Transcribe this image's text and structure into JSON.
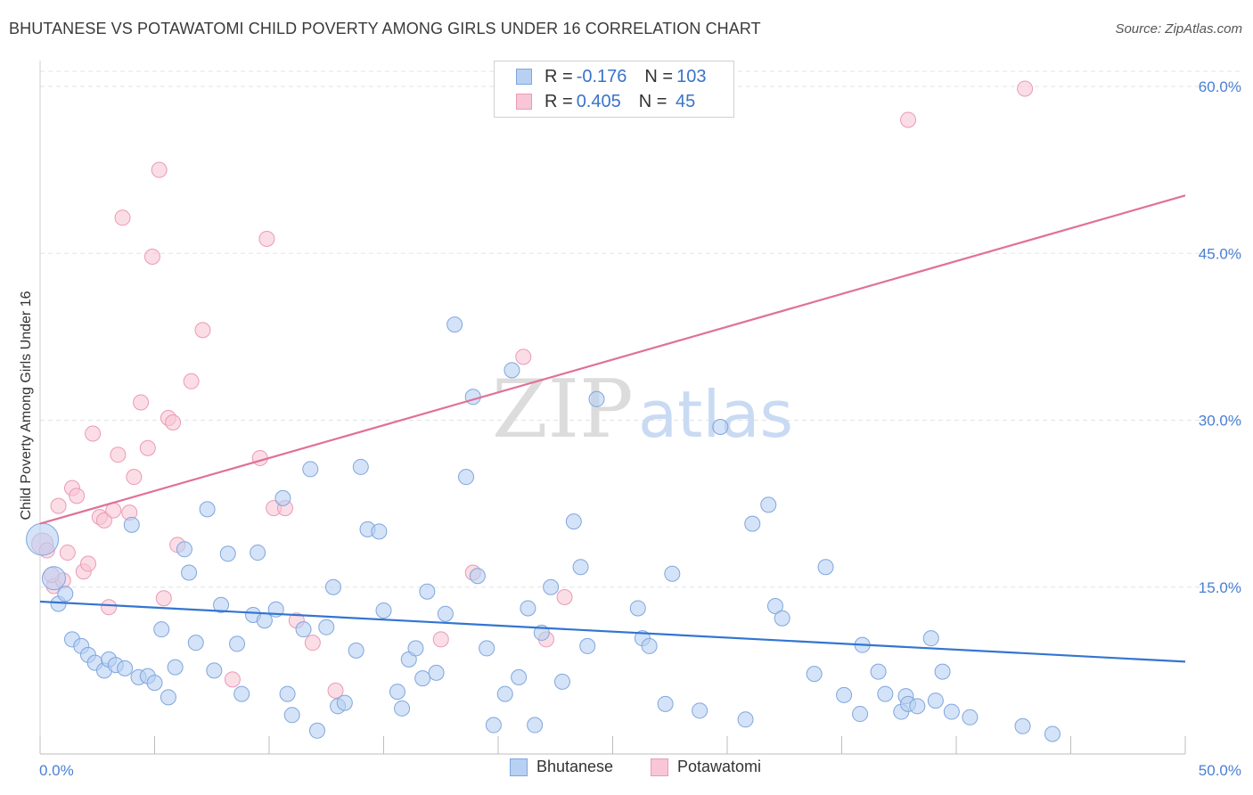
{
  "header": {
    "title": "BHUTANESE VS POTAWATOMI CHILD POVERTY AMONG GIRLS UNDER 16 CORRELATION CHART",
    "source": "Source: ZipAtlas.com"
  },
  "watermark": {
    "zip": "ZIP",
    "atlas": "atlas"
  },
  "legend_top": [
    {
      "r_label": "R = ",
      "r_value": "-0.176",
      "n_label": "N = ",
      "n_value": "103"
    },
    {
      "r_label": "R = ",
      "r_value": "0.405",
      "n_label": "N = ",
      "n_value": " 45"
    }
  ],
  "legend_bottom": [
    "Bhutanese",
    "Potawatomi"
  ],
  "colors": {
    "bhutanese_fill": "#b8d0f2",
    "bhutanese_stroke": "#7fa6de",
    "bhutanese_line": "#3375d0",
    "potawatomi_fill": "#f8c6d6",
    "potawatomi_stroke": "#eb9ab6",
    "potawatomi_line": "#e0709a",
    "tick_label": "#4a7fd4",
    "grid": "#e3e3e3"
  },
  "chart_data": {
    "type": "scatter",
    "title": "BHUTANESE VS POTAWATOMI CHILD POVERTY AMONG GIRLS UNDER 16 CORRELATION CHART",
    "xlabel": "",
    "ylabel": "Child Poverty Among Girls Under 16",
    "xlim": [
      0,
      50
    ],
    "ylim": [
      0,
      60
    ],
    "x_tick_labels": [
      "0.0%",
      "50.0%"
    ],
    "y_ticks": [
      15,
      30,
      45,
      60
    ],
    "y_tick_labels": [
      "15.0%",
      "30.0%",
      "45.0%",
      "60.0%"
    ],
    "grid": "horizontal dashed",
    "series": [
      {
        "name": "Bhutanese",
        "r": -0.176,
        "n": 103,
        "trend": {
          "x": [
            0,
            50
          ],
          "y": [
            13.7,
            8.3
          ]
        },
        "points": [
          [
            0.1,
            19.3,
            3
          ],
          [
            0.6,
            15.8,
            2
          ],
          [
            0.8,
            13.5,
            1
          ],
          [
            1.1,
            14.4,
            1
          ],
          [
            1.4,
            10.3,
            1
          ],
          [
            1.8,
            9.7,
            1
          ],
          [
            2.1,
            8.9,
            1
          ],
          [
            2.4,
            8.2,
            1
          ],
          [
            2.8,
            7.5,
            1
          ],
          [
            3.0,
            8.5,
            1
          ],
          [
            3.3,
            8.0,
            1
          ],
          [
            3.7,
            7.7,
            1
          ],
          [
            4.0,
            20.6,
            1
          ],
          [
            4.3,
            6.9,
            1
          ],
          [
            4.7,
            7.0,
            1
          ],
          [
            5.0,
            6.4,
            1
          ],
          [
            5.3,
            11.2,
            1
          ],
          [
            5.6,
            5.1,
            1
          ],
          [
            5.9,
            7.8,
            1
          ],
          [
            6.3,
            18.4,
            1
          ],
          [
            6.5,
            16.3,
            1
          ],
          [
            6.8,
            10.0,
            1
          ],
          [
            7.3,
            22.0,
            1
          ],
          [
            7.6,
            7.5,
            1
          ],
          [
            7.9,
            13.4,
            1
          ],
          [
            8.2,
            18.0,
            1
          ],
          [
            8.6,
            9.9,
            1
          ],
          [
            8.8,
            5.4,
            1
          ],
          [
            9.3,
            12.5,
            1
          ],
          [
            9.5,
            18.1,
            1
          ],
          [
            9.8,
            12.0,
            1
          ],
          [
            10.3,
            13.0,
            1
          ],
          [
            10.6,
            23.0,
            1
          ],
          [
            10.8,
            5.4,
            1
          ],
          [
            11.0,
            3.5,
            1
          ],
          [
            11.5,
            11.2,
            1
          ],
          [
            11.8,
            25.6,
            1
          ],
          [
            12.1,
            2.1,
            1
          ],
          [
            12.5,
            11.4,
            1
          ],
          [
            12.8,
            15.0,
            1
          ],
          [
            13.0,
            4.3,
            1
          ],
          [
            13.3,
            4.6,
            1
          ],
          [
            13.8,
            9.3,
            1
          ],
          [
            14.0,
            25.8,
            1
          ],
          [
            14.3,
            20.2,
            1
          ],
          [
            14.8,
            20.0,
            1
          ],
          [
            15.0,
            12.9,
            1
          ],
          [
            15.6,
            5.6,
            1
          ],
          [
            15.8,
            4.1,
            1
          ],
          [
            16.1,
            8.5,
            1
          ],
          [
            16.4,
            9.5,
            1
          ],
          [
            16.7,
            6.8,
            1
          ],
          [
            16.9,
            14.6,
            1
          ],
          [
            17.3,
            7.3,
            1
          ],
          [
            17.7,
            12.6,
            1
          ],
          [
            18.1,
            38.6,
            1
          ],
          [
            18.6,
            24.9,
            1
          ],
          [
            18.9,
            32.1,
            1
          ],
          [
            19.1,
            16.0,
            1
          ],
          [
            19.5,
            9.5,
            1
          ],
          [
            19.8,
            2.6,
            1
          ],
          [
            20.3,
            5.4,
            1
          ],
          [
            20.6,
            34.5,
            1
          ],
          [
            20.9,
            6.9,
            1
          ],
          [
            21.3,
            13.1,
            1
          ],
          [
            21.6,
            2.6,
            1
          ],
          [
            21.9,
            10.9,
            1
          ],
          [
            22.3,
            15.0,
            1
          ],
          [
            22.8,
            6.5,
            1
          ],
          [
            23.3,
            20.9,
            1
          ],
          [
            23.6,
            16.8,
            1
          ],
          [
            23.9,
            9.7,
            1
          ],
          [
            24.3,
            31.9,
            1
          ],
          [
            26.1,
            13.1,
            1
          ],
          [
            26.3,
            10.4,
            1
          ],
          [
            26.6,
            9.7,
            1
          ],
          [
            27.3,
            4.5,
            1
          ],
          [
            27.6,
            16.2,
            1
          ],
          [
            28.8,
            3.9,
            1
          ],
          [
            29.7,
            29.4,
            1
          ],
          [
            30.8,
            3.1,
            1
          ],
          [
            31.1,
            20.7,
            1
          ],
          [
            31.8,
            22.4,
            1
          ],
          [
            32.1,
            13.3,
            1
          ],
          [
            32.4,
            12.2,
            1
          ],
          [
            33.8,
            7.2,
            1
          ],
          [
            34.3,
            16.8,
            1
          ],
          [
            35.1,
            5.3,
            1
          ],
          [
            35.8,
            3.6,
            1
          ],
          [
            35.9,
            9.8,
            1
          ],
          [
            36.6,
            7.4,
            1
          ],
          [
            36.9,
            5.4,
            1
          ],
          [
            37.6,
            3.8,
            1
          ],
          [
            37.8,
            5.2,
            1
          ],
          [
            37.9,
            4.5,
            1
          ],
          [
            38.3,
            4.3,
            1
          ],
          [
            38.9,
            10.4,
            1
          ],
          [
            39.1,
            4.8,
            1
          ],
          [
            39.4,
            7.4,
            1
          ],
          [
            39.8,
            3.8,
            1
          ],
          [
            40.6,
            3.3,
            1
          ],
          [
            42.9,
            2.5,
            1
          ],
          [
            44.2,
            1.8,
            1
          ]
        ]
      },
      {
        "name": "Potawatomi",
        "r": 0.405,
        "n": 45,
        "trend": {
          "x": [
            0,
            50
          ],
          "y": [
            20.7,
            50.2
          ]
        },
        "points": [
          [
            0.1,
            18.9,
            2
          ],
          [
            0.3,
            18.3,
            1
          ],
          [
            0.6,
            15.1,
            1
          ],
          [
            0.8,
            22.3,
            1
          ],
          [
            1.0,
            15.6,
            1
          ],
          [
            1.2,
            18.1,
            1
          ],
          [
            1.4,
            23.9,
            1
          ],
          [
            1.6,
            23.2,
            1
          ],
          [
            1.9,
            16.4,
            1
          ],
          [
            2.1,
            17.1,
            1
          ],
          [
            2.3,
            28.8,
            1
          ],
          [
            2.6,
            21.3,
            1
          ],
          [
            2.8,
            21.0,
            1
          ],
          [
            3.0,
            13.2,
            1
          ],
          [
            3.2,
            21.9,
            1
          ],
          [
            3.4,
            26.9,
            1
          ],
          [
            3.6,
            48.2,
            1
          ],
          [
            3.9,
            21.7,
            1
          ],
          [
            4.1,
            24.9,
            1
          ],
          [
            4.4,
            31.6,
            1
          ],
          [
            4.7,
            27.5,
            1
          ],
          [
            4.9,
            44.7,
            1
          ],
          [
            5.2,
            52.5,
            1
          ],
          [
            5.4,
            14.0,
            1
          ],
          [
            5.6,
            30.2,
            1
          ],
          [
            5.8,
            29.8,
            1
          ],
          [
            6.0,
            18.8,
            1
          ],
          [
            6.6,
            33.5,
            1
          ],
          [
            7.1,
            38.1,
            1
          ],
          [
            8.4,
            6.7,
            1
          ],
          [
            9.6,
            26.6,
            1
          ],
          [
            9.9,
            46.3,
            1
          ],
          [
            10.2,
            22.1,
            1
          ],
          [
            10.7,
            22.1,
            1
          ],
          [
            11.2,
            12.0,
            1
          ],
          [
            11.9,
            10.0,
            1
          ],
          [
            12.9,
            5.7,
            1
          ],
          [
            17.5,
            10.3,
            1
          ],
          [
            18.9,
            16.3,
            1
          ],
          [
            21.1,
            35.7,
            1
          ],
          [
            22.1,
            10.3,
            1
          ],
          [
            22.9,
            14.1,
            1
          ],
          [
            37.9,
            57.0,
            1
          ],
          [
            43.0,
            59.8,
            1
          ],
          [
            0.5,
            16.1,
            1
          ]
        ]
      }
    ]
  }
}
